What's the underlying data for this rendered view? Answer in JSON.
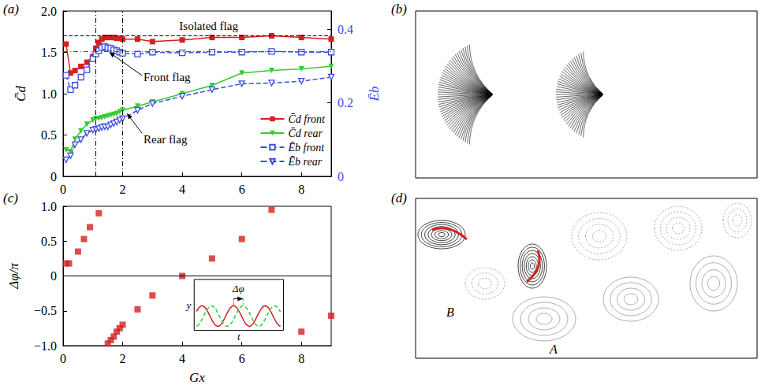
{
  "chart_data": [
    {
      "panel": "(a)",
      "type": "line",
      "y_label": "C̄d",
      "y2_label": "Ēb",
      "xlim": [
        0,
        9
      ],
      "xticks": [
        0,
        2,
        4,
        6,
        8
      ],
      "ylim": [
        0,
        2
      ],
      "yticks": [
        0,
        0.5,
        {
          "value": 1,
          "label": "1.0"
        },
        1.5,
        {
          "value": 2,
          "label": "2.0"
        }
      ],
      "y2lim": [
        0,
        0.45
      ],
      "y2ticks": [
        0,
        0.2,
        0.4
      ],
      "x": [
        0.1,
        0.25,
        0.4,
        0.6,
        0.8,
        1.0,
        1.1,
        1.2,
        1.3,
        1.4,
        1.5,
        1.6,
        1.7,
        1.8,
        1.9,
        2.0,
        2.5,
        3,
        4,
        5,
        6,
        7,
        8,
        9
      ],
      "series": [
        {
          "name": "C̄d front",
          "color": "#d42020",
          "marker": "square",
          "line_style": "solid",
          "values": [
            1.6,
            1.25,
            1.28,
            1.33,
            1.38,
            1.45,
            1.55,
            1.62,
            1.66,
            1.68,
            1.68,
            1.68,
            1.68,
            1.67,
            1.67,
            1.66,
            1.66,
            1.63,
            1.65,
            1.68,
            1.68,
            1.7,
            1.68,
            1.66
          ]
        },
        {
          "name": "C̄d rear",
          "color": "#33cc33",
          "marker": "triangle_down",
          "line_style": "solid",
          "values": [
            0.32,
            0.3,
            0.45,
            0.55,
            0.63,
            0.68,
            0.7,
            0.7,
            0.71,
            0.72,
            0.73,
            0.74,
            0.75,
            0.76,
            0.78,
            0.8,
            0.85,
            0.9,
            1.0,
            1.1,
            1.25,
            1.28,
            1.3,
            1.33
          ]
        },
        {
          "name": "Ēb front",
          "color": "#3a4fe0",
          "marker": "open_square",
          "line_style": "dashed",
          "axis": "y2",
          "values": [
            0.275,
            0.236,
            0.248,
            0.27,
            0.29,
            0.32,
            0.333,
            0.342,
            0.35,
            0.353,
            0.35,
            0.349,
            0.344,
            0.342,
            0.338,
            0.335,
            0.333,
            0.338,
            0.336,
            0.338,
            0.338,
            0.34,
            0.338,
            0.338
          ]
        },
        {
          "name": "Ēb rear",
          "color": "#3a4fe0",
          "marker": "open_triangle_down",
          "line_style": "dashed",
          "axis": "y2",
          "values": [
            0.045,
            0.056,
            0.086,
            0.1,
            0.117,
            0.126,
            0.128,
            0.13,
            0.133,
            0.135,
            0.135,
            0.14,
            0.144,
            0.148,
            0.153,
            0.157,
            0.18,
            0.198,
            0.218,
            0.236,
            0.252,
            0.254,
            0.259,
            0.27
          ]
        }
      ],
      "reference_lines": {
        "x": [
          1.1,
          2.0
        ],
        "y": [
          1.7
        ],
        "y2": [
          0.34
        ]
      },
      "annotations": [
        "Isolated flag",
        "Front flag",
        "Rear flag"
      ],
      "legend": "lower right"
    },
    {
      "panel": "(c)",
      "type": "scatter",
      "x_label": "Gx",
      "y_label": "Δφ/π",
      "xlim": [
        0,
        9
      ],
      "xticks": [
        0,
        2,
        4,
        6,
        8
      ],
      "ylim": [
        -1,
        1
      ],
      "yticks": [
        {
          "value": -1,
          "label": "−1.0"
        },
        {
          "value": -0.5,
          "label": "−0.5"
        },
        0,
        0.5,
        {
          "value": 1,
          "label": "1.0"
        }
      ],
      "x": [
        0.1,
        0.2,
        0.5,
        0.7,
        0.9,
        1.2,
        1.5,
        1.6,
        1.7,
        1.8,
        1.9,
        2.0,
        2.5,
        3.0,
        4,
        5,
        6,
        7,
        8,
        9
      ],
      "values": [
        0.18,
        0.18,
        0.35,
        0.53,
        0.7,
        0.9,
        -0.97,
        -0.92,
        -0.87,
        -0.8,
        -0.75,
        -0.7,
        -0.48,
        -0.28,
        0.0,
        0.25,
        0.53,
        0.95,
        -0.8,
        -0.57
      ],
      "color": "#d42020",
      "marker": "square",
      "reference_lines": {
        "y": [
          0
        ]
      },
      "inset": {
        "x_label": "t",
        "y_label": "y",
        "annotation": "Δφ"
      }
    }
  ],
  "panels": [
    {
      "label": "(b)"
    },
    {
      "label": "(d)",
      "annotations": [
        "B",
        "A"
      ]
    }
  ]
}
